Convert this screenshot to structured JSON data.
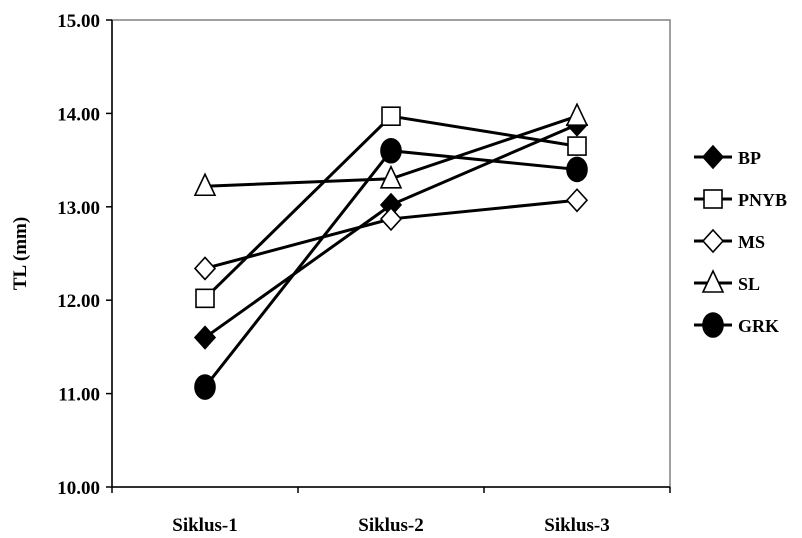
{
  "chart_data": {
    "type": "line",
    "categories": [
      "Siklus-1",
      "Siklus-2",
      "Siklus-3"
    ],
    "ylabel": "TL (mm)",
    "xlabel": "",
    "ylim": [
      10,
      15
    ],
    "yticks": [
      "10.00",
      "11.00",
      "12.00",
      "13.00",
      "14.00",
      "15.00"
    ],
    "grid": false,
    "legend_position": "right",
    "series": [
      {
        "name": "BP",
        "marker": "diamond-filled",
        "values": [
          11.6,
          13.02,
          13.88
        ]
      },
      {
        "name": "PNYB",
        "marker": "square-open",
        "values": [
          12.02,
          13.97,
          13.65
        ]
      },
      {
        "name": "MS",
        "marker": "diamond-open",
        "values": [
          12.34,
          12.87,
          13.07
        ]
      },
      {
        "name": "SL",
        "marker": "triangle-open",
        "values": [
          13.22,
          13.3,
          13.97
        ]
      },
      {
        "name": "GRK",
        "marker": "circle-filled",
        "values": [
          11.07,
          13.6,
          13.4
        ]
      }
    ]
  }
}
